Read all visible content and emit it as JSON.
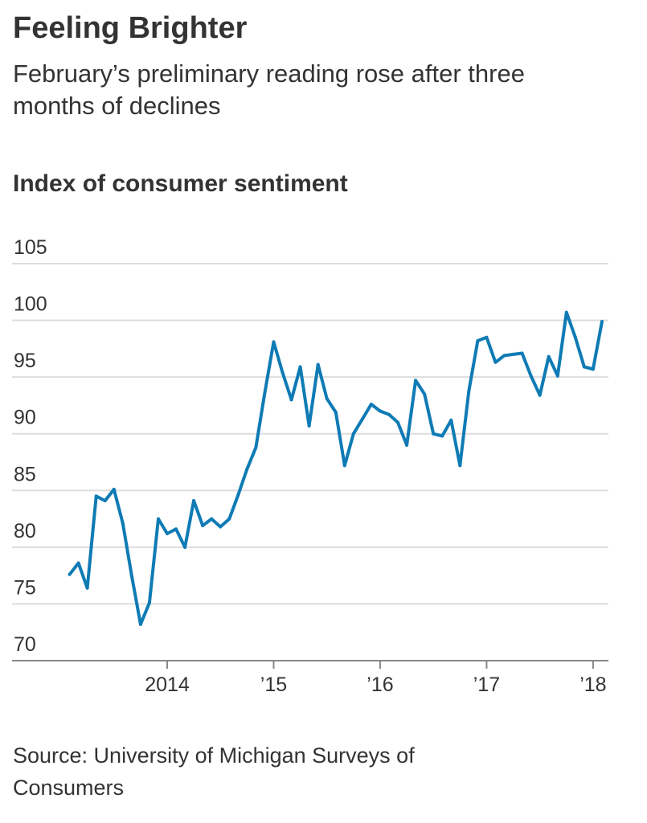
{
  "chart_data": {
    "type": "line",
    "title": "Feeling Brighter",
    "subtitle": "February’s preliminary reading rose after three months of declines",
    "ylabel": "Index of consumer sentiment",
    "xlabel": "",
    "source": "Source: University of Michigan Surveys of Consumers",
    "ylim": [
      70,
      105
    ],
    "yticks": [
      70,
      75,
      80,
      85,
      90,
      95,
      100,
      105
    ],
    "xticks": [
      {
        "label": "2014",
        "x": "2014-01"
      },
      {
        "label": "’15",
        "x": "2015-01"
      },
      {
        "label": "’16",
        "x": "2016-01"
      },
      {
        "label": "’17",
        "x": "2017-01"
      },
      {
        "label": "’18",
        "x": "2018-01"
      }
    ],
    "grid": true,
    "line_color": "#0f7bb5",
    "x": [
      "2013-02",
      "2013-03",
      "2013-04",
      "2013-05",
      "2013-06",
      "2013-07",
      "2013-08",
      "2013-09",
      "2013-10",
      "2013-11",
      "2013-12",
      "2014-01",
      "2014-02",
      "2014-03",
      "2014-04",
      "2014-05",
      "2014-06",
      "2014-07",
      "2014-08",
      "2014-09",
      "2014-10",
      "2014-11",
      "2014-12",
      "2015-01",
      "2015-02",
      "2015-03",
      "2015-04",
      "2015-05",
      "2015-06",
      "2015-07",
      "2015-08",
      "2015-09",
      "2015-10",
      "2015-11",
      "2015-12",
      "2016-01",
      "2016-02",
      "2016-03",
      "2016-04",
      "2016-05",
      "2016-06",
      "2016-07",
      "2016-08",
      "2016-09",
      "2016-10",
      "2016-11",
      "2016-12",
      "2017-01",
      "2017-02",
      "2017-03",
      "2017-04",
      "2017-05",
      "2017-06",
      "2017-07",
      "2017-08",
      "2017-09",
      "2017-10",
      "2017-11",
      "2017-12",
      "2018-01",
      "2018-02"
    ],
    "values": [
      77.6,
      78.6,
      76.4,
      84.5,
      84.1,
      85.1,
      82.1,
      77.5,
      73.2,
      75.1,
      82.5,
      81.2,
      81.6,
      80.0,
      84.1,
      81.9,
      82.5,
      81.8,
      82.5,
      84.6,
      86.9,
      88.8,
      93.6,
      98.1,
      95.4,
      93.0,
      95.9,
      90.7,
      96.1,
      93.1,
      91.9,
      87.2,
      90.0,
      91.3,
      92.6,
      92.0,
      91.7,
      91.0,
      89.0,
      94.7,
      93.5,
      90.0,
      89.8,
      91.2,
      87.2,
      93.8,
      98.2,
      98.5,
      96.3,
      96.9,
      97.0,
      97.1,
      95.1,
      93.4,
      96.8,
      95.1,
      100.7,
      98.5,
      95.9,
      95.7,
      99.9
    ]
  }
}
